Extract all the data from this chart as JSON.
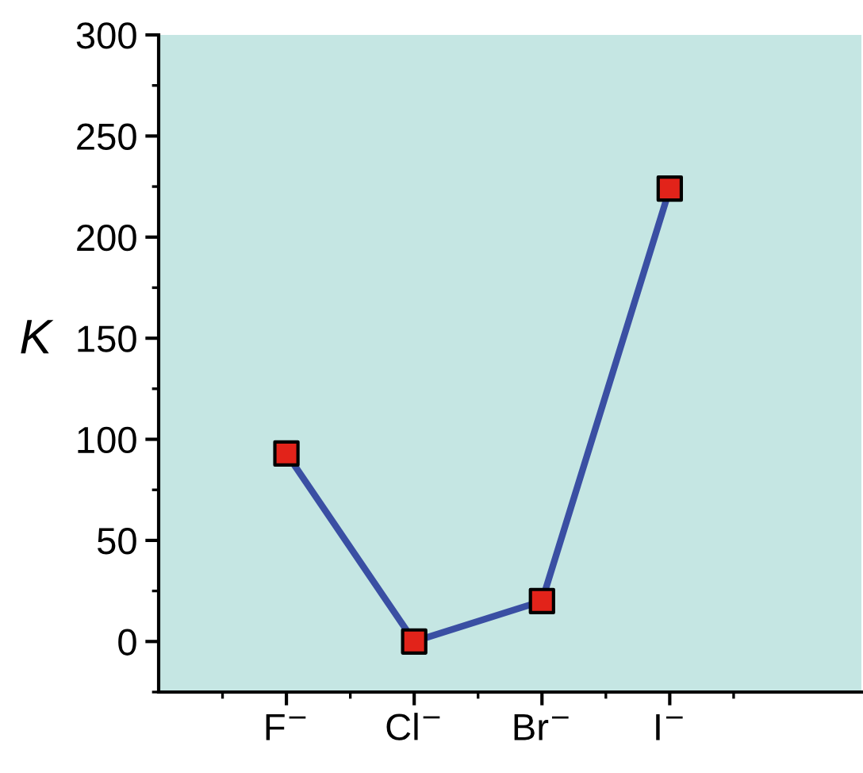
{
  "chart_data": {
    "type": "line",
    "ylabel": "K",
    "categories": [
      "F$^{−}$",
      "Cl$^{−}$",
      "Br$^{−}$",
      "I$^{−}$"
    ],
    "series": [
      {
        "color": "#3a4fa3",
        "colors": [
          "#e2231a",
          "#e2231a",
          "#e2231a",
          "#e2231a"
        ],
        "values": [
          93,
          0,
          20,
          224
        ]
      }
    ],
    "ylim": [
      -25,
      300
    ],
    "yticks": [
      0,
      50,
      100,
      150,
      200,
      250,
      300
    ],
    "marker": "square",
    "line_style": "solid",
    "grid": false,
    "legend": false
  }
}
